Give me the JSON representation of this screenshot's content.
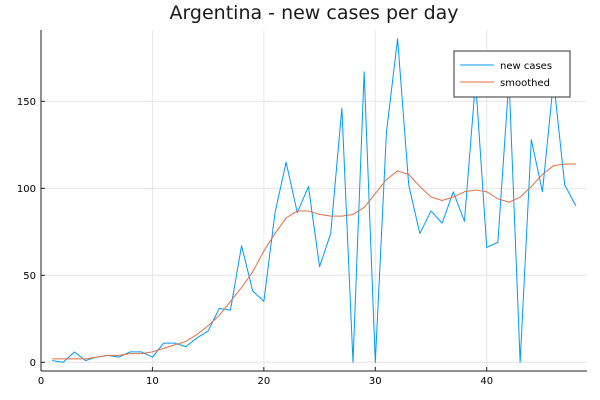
{
  "chart_data": {
    "type": "line",
    "title": "Argentina - new cases per day",
    "xlabel": "",
    "ylabel": "",
    "xlim": [
      0,
      49
    ],
    "ylim": [
      -5,
      191
    ],
    "x_ticks": [
      0,
      10,
      20,
      30,
      40
    ],
    "y_ticks": [
      0,
      50,
      100,
      150
    ],
    "grid": true,
    "legend_position": "top-right",
    "series": [
      {
        "name": "new cases",
        "color": "#009af9",
        "x": [
          1,
          2,
          3,
          4,
          5,
          6,
          7,
          8,
          9,
          10,
          11,
          12,
          13,
          14,
          15,
          16,
          17,
          18,
          19,
          20,
          21,
          22,
          23,
          24,
          25,
          26,
          27,
          28,
          29,
          30,
          31,
          32,
          33,
          34,
          35,
          36,
          37,
          38,
          39,
          40,
          41,
          42,
          43,
          44,
          45,
          46,
          47,
          48
        ],
        "y": [
          1,
          0,
          6,
          1,
          3,
          4,
          3,
          6,
          6,
          3,
          11,
          11,
          9,
          14,
          18,
          31,
          30,
          67,
          41,
          35,
          86,
          115,
          86,
          101,
          55,
          74,
          146,
          0,
          167,
          0,
          132,
          186,
          102,
          74,
          87,
          80,
          98,
          81,
          162,
          66,
          69,
          163,
          0,
          128,
          98,
          162,
          102,
          90
        ]
      },
      {
        "name": "smoothed",
        "color": "#e26f46",
        "x": [
          1,
          2,
          3,
          4,
          5,
          6,
          7,
          8,
          9,
          10,
          11,
          12,
          13,
          14,
          15,
          16,
          17,
          18,
          19,
          20,
          21,
          22,
          23,
          24,
          25,
          26,
          27,
          28,
          29,
          30,
          31,
          32,
          33,
          34,
          35,
          36,
          37,
          38,
          39,
          40,
          41,
          42,
          43,
          44,
          45,
          46,
          47,
          48
        ],
        "y": [
          2,
          2,
          2,
          2,
          3,
          4,
          4,
          5,
          5,
          6,
          8,
          10,
          12,
          16,
          21,
          27,
          35,
          43,
          52,
          64,
          74,
          83,
          87,
          87,
          85,
          84,
          84,
          85,
          89,
          97,
          105,
          110,
          108,
          101,
          95,
          93,
          95,
          98,
          99,
          98,
          94,
          92,
          95,
          101,
          108,
          113,
          114,
          114
        ]
      }
    ]
  }
}
